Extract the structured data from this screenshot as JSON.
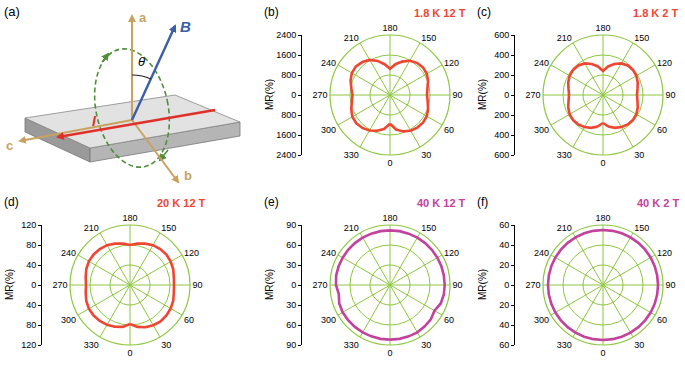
{
  "diagram": {
    "panel": "(a)",
    "axis_labels": [
      "a",
      "b",
      "c"
    ],
    "field": "B",
    "current": "I",
    "angle": "θ"
  },
  "chart_data": [
    {
      "type": "polar",
      "panel": "(b)",
      "title": "1.8 K 12 T",
      "ylabel": "MR(%)",
      "color": "#ef4634",
      "x": [
        0,
        10,
        20,
        30,
        40,
        50,
        60,
        70,
        80,
        90,
        100,
        110,
        120,
        130,
        140,
        150,
        160,
        170,
        180,
        190,
        200,
        210,
        220,
        230,
        240,
        250,
        260,
        270,
        280,
        290,
        300,
        310,
        320,
        330,
        340,
        350,
        360
      ],
      "values": [
        1150,
        1400,
        1550,
        1650,
        1700,
        1720,
        1700,
        1620,
        1530,
        1480,
        1520,
        1620,
        1700,
        1720,
        1680,
        1580,
        1420,
        1250,
        1050,
        1250,
        1450,
        1620,
        1720,
        1780,
        1760,
        1680,
        1570,
        1500,
        1550,
        1650,
        1740,
        1760,
        1720,
        1640,
        1520,
        1380,
        1150
      ],
      "xticks": [
        0,
        30,
        60,
        90,
        120,
        150,
        180,
        210,
        240,
        270,
        300,
        330
      ],
      "ylim": [
        0,
        2400
      ],
      "yticks": [
        0,
        800,
        1600,
        2400
      ],
      "grid": true
    },
    {
      "type": "polar",
      "panel": "(c)",
      "title": "1.8 K 2 T",
      "ylabel": "MR(%)",
      "color": "#ef4634",
      "x": [
        0,
        10,
        20,
        30,
        40,
        50,
        60,
        70,
        80,
        90,
        100,
        110,
        120,
        130,
        140,
        150,
        160,
        170,
        180,
        190,
        200,
        210,
        220,
        230,
        240,
        250,
        260,
        270,
        280,
        290,
        300,
        310,
        320,
        330,
        340,
        350,
        360
      ],
      "values": [
        280,
        320,
        350,
        370,
        385,
        390,
        385,
        370,
        350,
        340,
        350,
        370,
        385,
        390,
        385,
        365,
        330,
        290,
        240,
        290,
        330,
        365,
        385,
        390,
        385,
        370,
        350,
        340,
        350,
        370,
        385,
        390,
        385,
        370,
        350,
        320,
        280
      ],
      "xticks": [
        0,
        30,
        60,
        90,
        120,
        150,
        180,
        210,
        240,
        270,
        300,
        330
      ],
      "ylim": [
        0,
        600
      ],
      "yticks": [
        0,
        200,
        400,
        600
      ],
      "grid": true
    },
    {
      "type": "polar",
      "panel": "(d)",
      "title": "20 K 12 T",
      "ylabel": "MR(%)",
      "color": "#ef4634",
      "x": [
        0,
        10,
        20,
        30,
        40,
        50,
        60,
        70,
        80,
        90,
        100,
        110,
        120,
        130,
        140,
        150,
        160,
        170,
        180,
        190,
        200,
        210,
        220,
        230,
        240,
        250,
        260,
        270,
        280,
        290,
        300,
        310,
        320,
        330,
        340,
        350,
        360
      ],
      "values": [
        78,
        85,
        90,
        93,
        95,
        95,
        94,
        92,
        89,
        88,
        89,
        92,
        94,
        95,
        94,
        92,
        88,
        84,
        80,
        84,
        88,
        92,
        94,
        95,
        95,
        93,
        90,
        88,
        90,
        93,
        95,
        95,
        94,
        92,
        89,
        85,
        78
      ],
      "xticks": [
        0,
        30,
        60,
        90,
        120,
        150,
        180,
        210,
        240,
        270,
        300,
        330
      ],
      "ylim": [
        0,
        120
      ],
      "yticks": [
        0,
        40,
        80,
        120
      ],
      "grid": true
    },
    {
      "type": "polar",
      "panel": "(e)",
      "title": "40 K 12 T",
      "ylabel": "MR(%)",
      "color": "#c2429c",
      "x": [
        0,
        10,
        20,
        30,
        40,
        50,
        60,
        70,
        80,
        90,
        100,
        110,
        120,
        130,
        140,
        150,
        160,
        170,
        180,
        190,
        200,
        210,
        220,
        230,
        240,
        250,
        260,
        270,
        280,
        290,
        300,
        310,
        320,
        330,
        340,
        350,
        360
      ],
      "values": [
        82,
        82,
        82,
        82,
        81,
        80,
        77,
        81,
        82,
        82,
        82,
        82,
        82,
        82,
        82,
        82,
        82,
        82,
        82,
        82,
        82,
        82,
        82,
        82,
        82,
        82,
        82,
        81,
        78,
        81,
        82,
        82,
        82,
        82,
        82,
        82,
        82
      ],
      "xticks": [
        0,
        30,
        60,
        90,
        120,
        150,
        180,
        210,
        240,
        270,
        300,
        330
      ],
      "ylim": [
        0,
        90
      ],
      "yticks": [
        0,
        30,
        60,
        90
      ],
      "grid": true
    },
    {
      "type": "polar",
      "panel": "(f)",
      "title": "40 K 2 T",
      "ylabel": "MR(%)",
      "color": "#c2429c",
      "x": [
        0,
        10,
        20,
        30,
        40,
        50,
        60,
        70,
        80,
        90,
        100,
        110,
        120,
        130,
        140,
        150,
        160,
        170,
        180,
        190,
        200,
        210,
        220,
        230,
        240,
        250,
        260,
        270,
        280,
        290,
        300,
        310,
        320,
        330,
        340,
        350,
        360
      ],
      "values": [
        55,
        55,
        55,
        55,
        55,
        55,
        55,
        55,
        55,
        55,
        55,
        55,
        55,
        55,
        55,
        55,
        55,
        55,
        55,
        55,
        55,
        55,
        55,
        55,
        55,
        55,
        55,
        55,
        55,
        55,
        55,
        55,
        55,
        55,
        55,
        55,
        55
      ],
      "xticks": [
        0,
        30,
        60,
        90,
        120,
        150,
        180,
        210,
        240,
        270,
        300,
        330
      ],
      "ylim": [
        0,
        60
      ],
      "yticks": [
        0,
        20,
        40,
        60
      ],
      "grid": true
    }
  ]
}
